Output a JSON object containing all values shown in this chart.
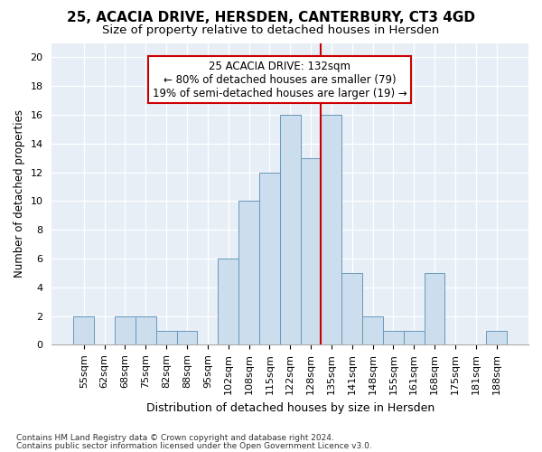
{
  "title1": "25, ACACIA DRIVE, HERSDEN, CANTERBURY, CT3 4GD",
  "title2": "Size of property relative to detached houses in Hersden",
  "xlabel": "Distribution of detached houses by size in Hersden",
  "ylabel": "Number of detached properties",
  "footnote1": "Contains HM Land Registry data © Crown copyright and database right 2024.",
  "footnote2": "Contains public sector information licensed under the Open Government Licence v3.0.",
  "annotation_line1": "25 ACACIA DRIVE: 132sqm",
  "annotation_line2": "← 80% of detached houses are smaller (79)",
  "annotation_line3": "19% of semi-detached houses are larger (19) →",
  "bar_labels": [
    "55sqm",
    "62sqm",
    "68sqm",
    "75sqm",
    "82sqm",
    "88sqm",
    "95sqm",
    "102sqm",
    "108sqm",
    "115sqm",
    "122sqm",
    "128sqm",
    "135sqm",
    "141sqm",
    "148sqm",
    "155sqm",
    "161sqm",
    "168sqm",
    "175sqm",
    "181sqm",
    "188sqm"
  ],
  "bar_values": [
    2,
    0,
    2,
    2,
    1,
    1,
    0,
    6,
    10,
    12,
    16,
    13,
    16,
    5,
    2,
    1,
    1,
    5,
    0,
    0,
    1
  ],
  "bar_color": "#ccdded",
  "bar_edge_color": "#6699bb",
  "vline_color": "#cc0000",
  "vline_position": 12.5,
  "ylim": [
    0,
    21
  ],
  "yticks": [
    0,
    2,
    4,
    6,
    8,
    10,
    12,
    14,
    16,
    18,
    20
  ],
  "plot_bg_color": "#e8eef6",
  "fig_bg_color": "#ffffff",
  "annotation_box_facecolor": "#ffffff",
  "annotation_box_edgecolor": "#cc0000",
  "title1_fontsize": 11,
  "title2_fontsize": 9.5,
  "xlabel_fontsize": 9,
  "ylabel_fontsize": 8.5,
  "tick_fontsize": 8,
  "annotation_fontsize": 8.5,
  "footnote_fontsize": 6.5
}
